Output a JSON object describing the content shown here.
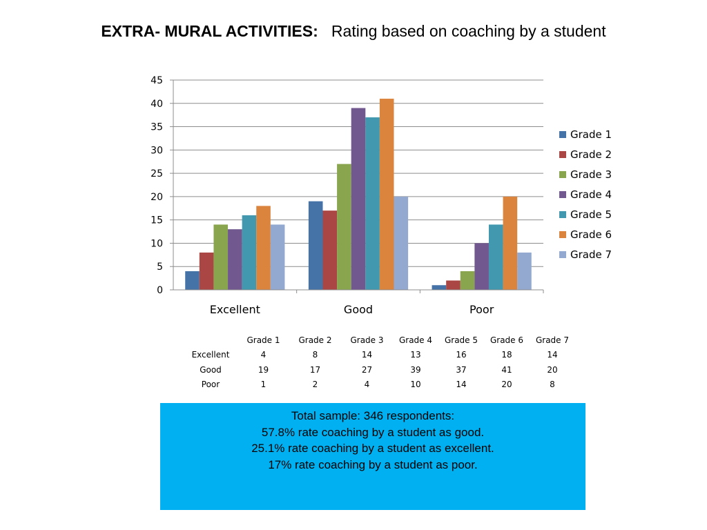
{
  "title": {
    "bold": "EXTRA- MURAL ACTIVITIES:",
    "rest": "Rating based on coaching by a student"
  },
  "chart_data": {
    "type": "bar",
    "title": "",
    "xlabel": "",
    "ylabel": "",
    "categories": [
      "Excellent",
      "Good",
      "Poor"
    ],
    "ylim": [
      0,
      45
    ],
    "yticks": [
      0,
      5,
      10,
      15,
      20,
      25,
      30,
      35,
      40,
      45
    ],
    "grid": true,
    "legend_position": "right",
    "series": [
      {
        "name": "Grade 1",
        "color": "#4572a7",
        "values": [
          4,
          19,
          1
        ]
      },
      {
        "name": "Grade 2",
        "color": "#aa4643",
        "values": [
          8,
          17,
          2
        ]
      },
      {
        "name": "Grade 3",
        "color": "#89a54e",
        "values": [
          14,
          27,
          4
        ]
      },
      {
        "name": "Grade 4",
        "color": "#71588f",
        "values": [
          13,
          39,
          10
        ]
      },
      {
        "name": "Grade 5",
        "color": "#4198af",
        "values": [
          16,
          37,
          14
        ]
      },
      {
        "name": "Grade 6",
        "color": "#db843d",
        "values": [
          18,
          41,
          20
        ]
      },
      {
        "name": "Grade 7",
        "color": "#93a9cf",
        "values": [
          14,
          20,
          8
        ]
      }
    ]
  },
  "table": {
    "headers": [
      "Grade 1",
      "Grade 2",
      "Grade 3",
      "Grade 4",
      "Grade 5",
      "Grade 6",
      "Grade 7"
    ],
    "rows": [
      {
        "label": "Excellent",
        "values": [
          "4",
          "8",
          "14",
          "13",
          "16",
          "18",
          "14"
        ]
      },
      {
        "label": "Good",
        "values": [
          "19",
          "17",
          "27",
          "39",
          "37",
          "41",
          "20"
        ]
      },
      {
        "label": "Poor",
        "values": [
          "1",
          "2",
          "4",
          "10",
          "14",
          "20",
          "8"
        ]
      }
    ]
  },
  "summary": {
    "lines": [
      "Total sample:  346 respondents:",
      "57.8% rate coaching by a student as good.",
      "25.1% rate coaching by a student as excellent.",
      "17% rate coaching by a student as poor."
    ],
    "background": "#00b0f0"
  }
}
